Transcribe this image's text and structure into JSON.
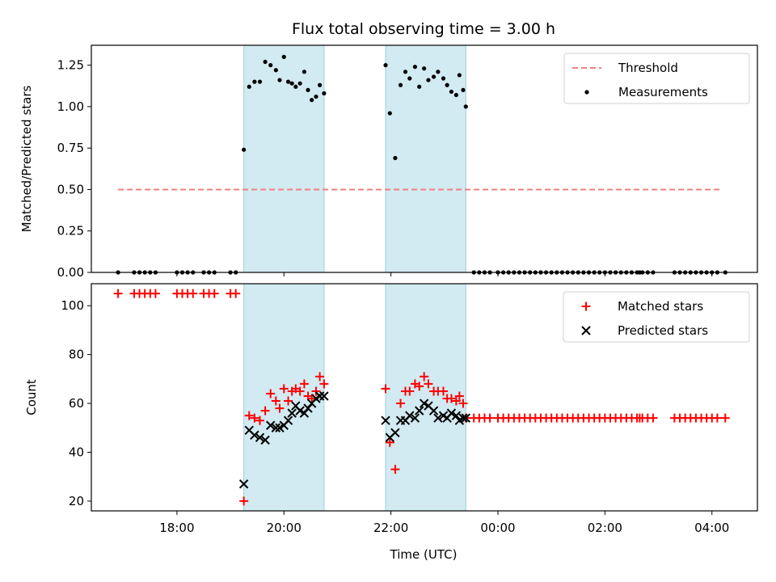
{
  "chart_data": {
    "title": "Flux total observing time = 3.00 h",
    "xlabel": "Time (UTC)",
    "x_unit": "hours since 00:00 on first night (24+ = next day)",
    "x_ticks": [
      {
        "v": 18,
        "label": "18:00"
      },
      {
        "v": 20,
        "label": "20:00"
      },
      {
        "v": 22,
        "label": "22:00"
      },
      {
        "v": 24,
        "label": "00:00"
      },
      {
        "v": 26,
        "label": "02:00"
      },
      {
        "v": 28,
        "label": "04:00"
      }
    ],
    "xlim": [
      16.4,
      28.85
    ],
    "highlight_color": "#add8e6",
    "observing_windows": [
      [
        19.25,
        20.75
      ],
      [
        21.9,
        23.4
      ]
    ],
    "panels": [
      {
        "type": "scatter",
        "ylabel": "Matched/Predicted stars",
        "ylim": [
          0,
          1.37
        ],
        "y_ticks": [
          "0.00",
          "0.25",
          "0.50",
          "0.75",
          "1.00",
          "1.25"
        ],
        "legend": {
          "position": "top-right",
          "entries": [
            "Threshold",
            "Measurements"
          ]
        },
        "threshold": {
          "name": "Threshold",
          "value": 0.5,
          "x_range": [
            16.9,
            28.2
          ],
          "color": "#f08080",
          "style": "dashed"
        },
        "series": [
          {
            "name": "Measurements",
            "color": "#000000",
            "marker": "dot",
            "points": [
              [
                16.9,
                0
              ],
              [
                17.2,
                0
              ],
              [
                17.3,
                0
              ],
              [
                17.4,
                0
              ],
              [
                17.5,
                0
              ],
              [
                17.6,
                0
              ],
              [
                18.0,
                0
              ],
              [
                18.1,
                0
              ],
              [
                18.2,
                0
              ],
              [
                18.3,
                0
              ],
              [
                18.5,
                0
              ],
              [
                18.6,
                0
              ],
              [
                18.7,
                0
              ],
              [
                19.0,
                0
              ],
              [
                19.1,
                0
              ],
              [
                19.25,
                0.74
              ],
              [
                19.35,
                1.12
              ],
              [
                19.45,
                1.15
              ],
              [
                19.55,
                1.15
              ],
              [
                19.65,
                1.27
              ],
              [
                19.75,
                1.25
              ],
              [
                19.85,
                1.22
              ],
              [
                19.92,
                1.16
              ],
              [
                20.0,
                1.3
              ],
              [
                20.08,
                1.15
              ],
              [
                20.15,
                1.14
              ],
              [
                20.22,
                1.12
              ],
              [
                20.3,
                1.14
              ],
              [
                20.38,
                1.21
              ],
              [
                20.45,
                1.1
              ],
              [
                20.52,
                1.04
              ],
              [
                20.6,
                1.06
              ],
              [
                20.67,
                1.13
              ],
              [
                20.75,
                1.08
              ],
              [
                21.9,
                1.25
              ],
              [
                21.98,
                0.96
              ],
              [
                22.08,
                0.69
              ],
              [
                22.18,
                1.13
              ],
              [
                22.27,
                1.21
              ],
              [
                22.35,
                1.17
              ],
              [
                22.45,
                1.24
              ],
              [
                22.53,
                1.12
              ],
              [
                22.62,
                1.23
              ],
              [
                22.7,
                1.16
              ],
              [
                22.8,
                1.18
              ],
              [
                22.88,
                1.21
              ],
              [
                22.98,
                1.17
              ],
              [
                23.05,
                1.13
              ],
              [
                23.13,
                1.09
              ],
              [
                23.22,
                1.07
              ],
              [
                23.28,
                1.19
              ],
              [
                23.35,
                1.1
              ],
              [
                23.4,
                1.0
              ],
              [
                23.55,
                0
              ],
              [
                23.65,
                0
              ],
              [
                23.75,
                0
              ],
              [
                23.85,
                0
              ],
              [
                24.0,
                0
              ],
              [
                24.1,
                0
              ],
              [
                24.2,
                0
              ],
              [
                24.3,
                0
              ],
              [
                24.4,
                0
              ],
              [
                24.5,
                0
              ],
              [
                24.6,
                0
              ],
              [
                24.7,
                0
              ],
              [
                24.8,
                0
              ],
              [
                24.9,
                0
              ],
              [
                25.0,
                0
              ],
              [
                25.1,
                0
              ],
              [
                25.2,
                0
              ],
              [
                25.3,
                0
              ],
              [
                25.4,
                0
              ],
              [
                25.5,
                0
              ],
              [
                25.6,
                0
              ],
              [
                25.7,
                0
              ],
              [
                25.8,
                0
              ],
              [
                25.9,
                0
              ],
              [
                26.0,
                0
              ],
              [
                26.1,
                0
              ],
              [
                26.2,
                0
              ],
              [
                26.3,
                0
              ],
              [
                26.4,
                0
              ],
              [
                26.5,
                0
              ],
              [
                26.6,
                0
              ],
              [
                26.65,
                0
              ],
              [
                26.7,
                0
              ],
              [
                26.8,
                0
              ],
              [
                26.9,
                0
              ],
              [
                27.3,
                0
              ],
              [
                27.4,
                0
              ],
              [
                27.5,
                0
              ],
              [
                27.6,
                0
              ],
              [
                27.7,
                0
              ],
              [
                27.8,
                0
              ],
              [
                27.9,
                0
              ],
              [
                28.0,
                0
              ],
              [
                28.1,
                0
              ],
              [
                28.25,
                0
              ]
            ]
          }
        ]
      },
      {
        "type": "scatter",
        "ylabel": "Count",
        "ylim": [
          16,
          109
        ],
        "y_ticks": [
          "20",
          "40",
          "60",
          "80",
          "100"
        ],
        "legend": {
          "position": "top-right",
          "entries": [
            "Matched stars",
            "Predicted stars"
          ]
        },
        "series": [
          {
            "name": "Matched stars",
            "color": "#ff0000",
            "marker": "plus",
            "points": [
              [
                16.9,
                105
              ],
              [
                17.2,
                105
              ],
              [
                17.3,
                105
              ],
              [
                17.4,
                105
              ],
              [
                17.5,
                105
              ],
              [
                17.6,
                105
              ],
              [
                18.0,
                105
              ],
              [
                18.1,
                105
              ],
              [
                18.2,
                105
              ],
              [
                18.3,
                105
              ],
              [
                18.5,
                105
              ],
              [
                18.6,
                105
              ],
              [
                18.7,
                105
              ],
              [
                19.0,
                105
              ],
              [
                19.1,
                105
              ],
              [
                19.25,
                20
              ],
              [
                19.35,
                55
              ],
              [
                19.45,
                54
              ],
              [
                19.55,
                53
              ],
              [
                19.65,
                57
              ],
              [
                19.75,
                64
              ],
              [
                19.85,
                61
              ],
              [
                19.92,
                58
              ],
              [
                20.0,
                66
              ],
              [
                20.08,
                61
              ],
              [
                20.15,
                65
              ],
              [
                20.22,
                66
              ],
              [
                20.3,
                65
              ],
              [
                20.38,
                68
              ],
              [
                20.45,
                63
              ],
              [
                20.52,
                62
              ],
              [
                20.6,
                65
              ],
              [
                20.67,
                71
              ],
              [
                20.75,
                68
              ],
              [
                21.9,
                66
              ],
              [
                21.98,
                44
              ],
              [
                22.08,
                33
              ],
              [
                22.18,
                60
              ],
              [
                22.27,
                65
              ],
              [
                22.35,
                65
              ],
              [
                22.45,
                68
              ],
              [
                22.53,
                67
              ],
              [
                22.62,
                71
              ],
              [
                22.7,
                68
              ],
              [
                22.8,
                65
              ],
              [
                22.88,
                65
              ],
              [
                22.98,
                65
              ],
              [
                23.05,
                62
              ],
              [
                23.13,
                62
              ],
              [
                23.22,
                61
              ],
              [
                23.28,
                63
              ],
              [
                23.35,
                60
              ],
              [
                23.4,
                54
              ],
              [
                23.55,
                54
              ],
              [
                23.65,
                54
              ],
              [
                23.75,
                54
              ],
              [
                23.85,
                54
              ],
              [
                24.0,
                54
              ],
              [
                24.1,
                54
              ],
              [
                24.2,
                54
              ],
              [
                24.3,
                54
              ],
              [
                24.4,
                54
              ],
              [
                24.5,
                54
              ],
              [
                24.6,
                54
              ],
              [
                24.7,
                54
              ],
              [
                24.8,
                54
              ],
              [
                24.9,
                54
              ],
              [
                25.0,
                54
              ],
              [
                25.1,
                54
              ],
              [
                25.2,
                54
              ],
              [
                25.3,
                54
              ],
              [
                25.4,
                54
              ],
              [
                25.5,
                54
              ],
              [
                25.6,
                54
              ],
              [
                25.7,
                54
              ],
              [
                25.8,
                54
              ],
              [
                25.9,
                54
              ],
              [
                26.0,
                54
              ],
              [
                26.1,
                54
              ],
              [
                26.2,
                54
              ],
              [
                26.3,
                54
              ],
              [
                26.4,
                54
              ],
              [
                26.5,
                54
              ],
              [
                26.6,
                54
              ],
              [
                26.65,
                54
              ],
              [
                26.7,
                54
              ],
              [
                26.8,
                54
              ],
              [
                26.9,
                54
              ],
              [
                27.3,
                54
              ],
              [
                27.4,
                54
              ],
              [
                27.5,
                54
              ],
              [
                27.6,
                54
              ],
              [
                27.7,
                54
              ],
              [
                27.8,
                54
              ],
              [
                27.9,
                54
              ],
              [
                28.0,
                54
              ],
              [
                28.1,
                54
              ],
              [
                28.25,
                54
              ]
            ]
          },
          {
            "name": "Predicted stars",
            "color": "#000000",
            "marker": "x",
            "points": [
              [
                19.25,
                27
              ],
              [
                19.35,
                49
              ],
              [
                19.45,
                47
              ],
              [
                19.55,
                46
              ],
              [
                19.65,
                45
              ],
              [
                19.75,
                51
              ],
              [
                19.85,
                50
              ],
              [
                19.92,
                50
              ],
              [
                20.0,
                51
              ],
              [
                20.08,
                53
              ],
              [
                20.15,
                56
              ],
              [
                20.22,
                59
              ],
              [
                20.3,
                57
              ],
              [
                20.38,
                56
              ],
              [
                20.45,
                58
              ],
              [
                20.52,
                60
              ],
              [
                20.6,
                62
              ],
              [
                20.67,
                63
              ],
              [
                20.75,
                63
              ],
              [
                21.9,
                53
              ],
              [
                21.98,
                46
              ],
              [
                22.08,
                48
              ],
              [
                22.18,
                53
              ],
              [
                22.27,
                53
              ],
              [
                22.35,
                55
              ],
              [
                22.45,
                54
              ],
              [
                22.53,
                57
              ],
              [
                22.62,
                60
              ],
              [
                22.7,
                59
              ],
              [
                22.8,
                57
              ],
              [
                22.88,
                54
              ],
              [
                22.98,
                55
              ],
              [
                23.05,
                54
              ],
              [
                23.13,
                56
              ],
              [
                23.22,
                55
              ],
              [
                23.28,
                53
              ],
              [
                23.35,
                54
              ],
              [
                23.4,
                54
              ]
            ]
          }
        ]
      }
    ]
  }
}
